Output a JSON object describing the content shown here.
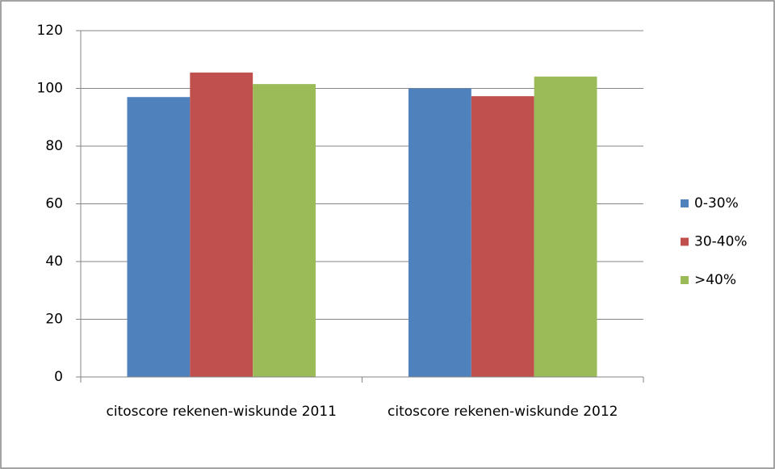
{
  "chart_data": {
    "type": "bar",
    "categories": [
      "citoscore rekenen-wiskunde 2011",
      "citoscore rekenen-wiskunde 2012"
    ],
    "series": [
      {
        "name": "0-30%",
        "color": "#4f81bd",
        "values": [
          97,
          100
        ]
      },
      {
        "name": "30-40%",
        "color": "#c0504d",
        "values": [
          105.5,
          97.3
        ]
      },
      {
        "name": ">40%",
        "color": "#9bbb59",
        "values": [
          101.5,
          104.1
        ]
      }
    ],
    "ylim": [
      0,
      120
    ],
    "yticks": [
      0,
      20,
      40,
      60,
      80,
      100,
      120
    ],
    "grid": true,
    "legend": "right"
  }
}
